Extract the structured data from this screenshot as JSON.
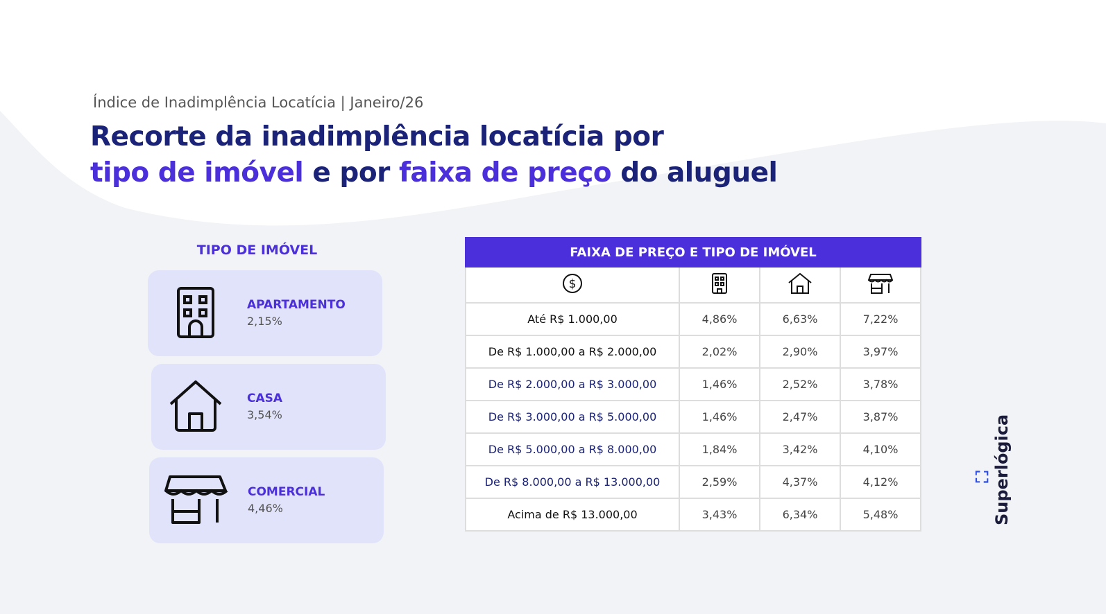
{
  "header": {
    "subtitle": "Índice de Inadimplência Locatícia | Janeiro/26",
    "title": {
      "line1": "Recorte da inadimplência locatícia por",
      "part1": "tipo de imóvel",
      "part2": "e por",
      "part3": "faixa de preço",
      "part4": "do aluguel"
    }
  },
  "property_types": {
    "title": "TIPO DE IMÓVEL",
    "items": [
      {
        "label": "APARTAMENTO",
        "value": "2,15%"
      },
      {
        "label": "CASA",
        "value": "3,54%"
      },
      {
        "label": "COMERCIAL",
        "value": "4,46%"
      }
    ]
  },
  "table": {
    "title": "FAIXA DE PREÇO E TIPO DE IMÓVEL",
    "rows": [
      [
        "Até R$ 1.000,00",
        "4,86%",
        "6,63%",
        "7,22%"
      ],
      [
        "De R$ 1.000,00 a R$ 2.000,00",
        "2,02%",
        "2,90%",
        "3,97%"
      ],
      [
        "De R$ 2.000,00 a R$ 3.000,00",
        "1,46%",
        "2,52%",
        "3,78%"
      ],
      [
        "De R$ 3.000,00 a R$ 5.000,00",
        "1,46%",
        "2,47%",
        "3,87%"
      ],
      [
        "De R$ 5.000,00 a R$ 8.000,00",
        "1,84%",
        "3,42%",
        "4,10%"
      ],
      [
        "De R$ 8.000,00 a R$ 13.000,00",
        "2,59%",
        "4,37%",
        "4,12%"
      ],
      [
        "Acima de R$ 13.000,00",
        "3,43%",
        "6,34%",
        "5,48%"
      ]
    ]
  },
  "logo": "Superlógica"
}
